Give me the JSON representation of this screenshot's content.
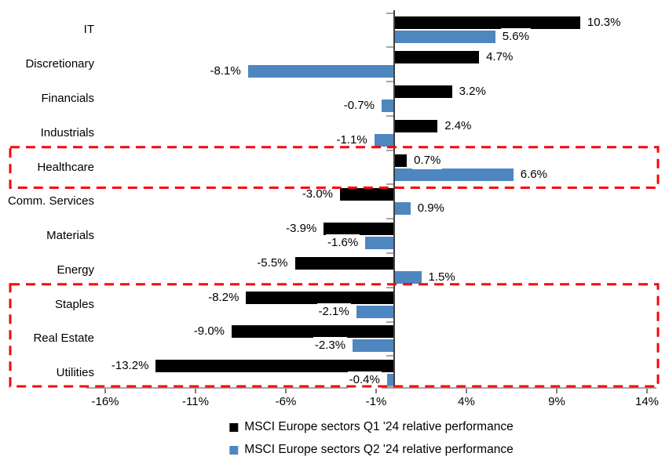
{
  "chart_data": {
    "type": "bar",
    "orientation": "horizontal",
    "title": "",
    "categories": [
      "IT",
      "Discretionary",
      "Financials",
      "Industrials",
      "Healthcare",
      "Comm. Services",
      "Materials",
      "Energy",
      "Staples",
      "Real Estate",
      "Utilities"
    ],
    "series": [
      {
        "name": "MSCI Europe sectors Q1 '24 relative performance",
        "color": "#000000",
        "values": [
          10.3,
          4.7,
          3.2,
          2.4,
          0.7,
          -3.0,
          -3.9,
          -5.5,
          -8.2,
          -9.0,
          -13.2
        ],
        "labels": [
          "10.3%",
          "4.7%",
          "3.2%",
          "2.4%",
          "0.7%",
          "-3.0%",
          "-3.9%",
          "-5.5%",
          "-8.2%",
          "-9.0%",
          "-13.2%"
        ]
      },
      {
        "name": "MSCI Europe sectors Q2 '24 relative performance",
        "color": "#4E86C0",
        "values": [
          5.6,
          -8.1,
          -0.7,
          -1.1,
          6.6,
          0.9,
          -1.6,
          1.5,
          -2.1,
          -2.3,
          -0.4
        ],
        "labels": [
          "5.6%",
          "-8.1%",
          "-0.7%",
          "-1.1%",
          "6.6%",
          "0.9%",
          "-1.6%",
          "1.5%",
          "-2.1%",
          "-2.3%",
          "-0.4%"
        ]
      }
    ],
    "x_axis": {
      "unit": "%",
      "min": -17,
      "max": 14.6,
      "tick_values": [
        -16,
        -11,
        -6,
        -1,
        4,
        9,
        14
      ],
      "tick_labels": [
        "-16%",
        "-11%",
        "-6%",
        "-1%",
        "4%",
        "9%",
        "14%"
      ]
    },
    "legend_position": "bottom",
    "grid": false,
    "annotations": {
      "highlight_color": "#FB0505",
      "highlight_boxes": [
        {
          "categories": [
            "Healthcare"
          ],
          "style": "red-dashed-rectangle"
        },
        {
          "categories": [
            "Staples",
            "Real Estate",
            "Utilities"
          ],
          "style": "red-dashed-rectangle"
        }
      ]
    }
  }
}
